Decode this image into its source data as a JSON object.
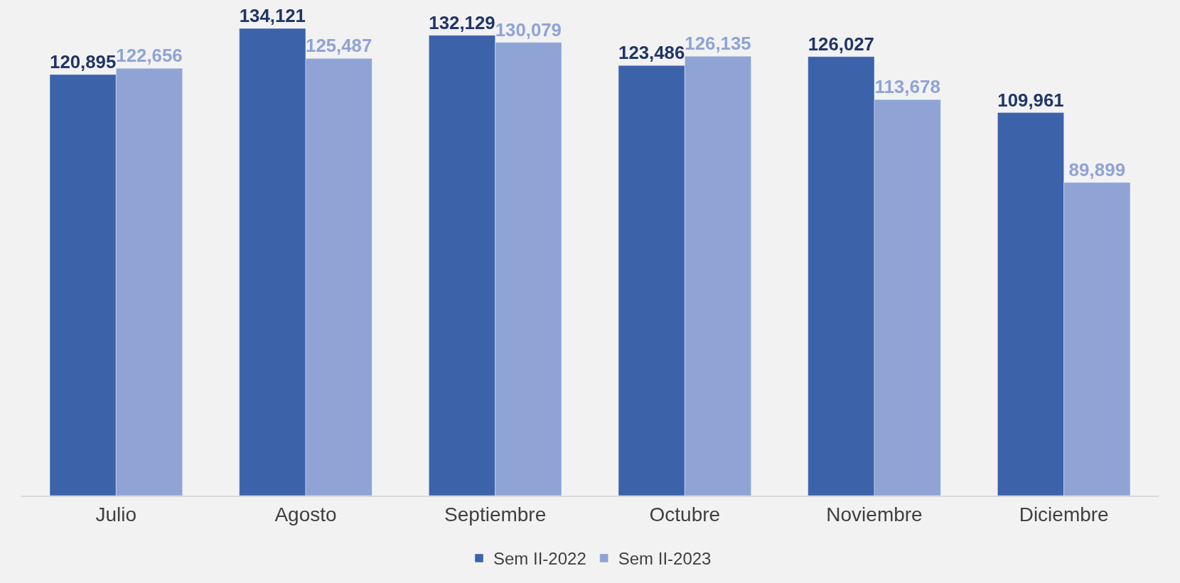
{
  "chart_data": {
    "type": "bar",
    "categories": [
      "Julio",
      "Agosto",
      "Septiembre",
      "Octubre",
      "Noviembre",
      "Diciembre"
    ],
    "series": [
      {
        "name": "Sem II-2022",
        "color": "#3c62aa",
        "values": [
          120895,
          134121,
          132129,
          123486,
          126027,
          109961
        ],
        "value_labels": [
          "120,895",
          "134,121",
          "132,129",
          "123,486",
          "126,027",
          "109,961"
        ]
      },
      {
        "name": "Sem II-2023",
        "color": "#8fa3d5",
        "values": [
          122656,
          125487,
          130079,
          126135,
          113678,
          89899
        ],
        "value_labels": [
          "122,656",
          "125,487",
          "130,079",
          "126,135",
          "113,678",
          "89,899"
        ]
      }
    ],
    "legend": "bottom",
    "grid": false
  }
}
